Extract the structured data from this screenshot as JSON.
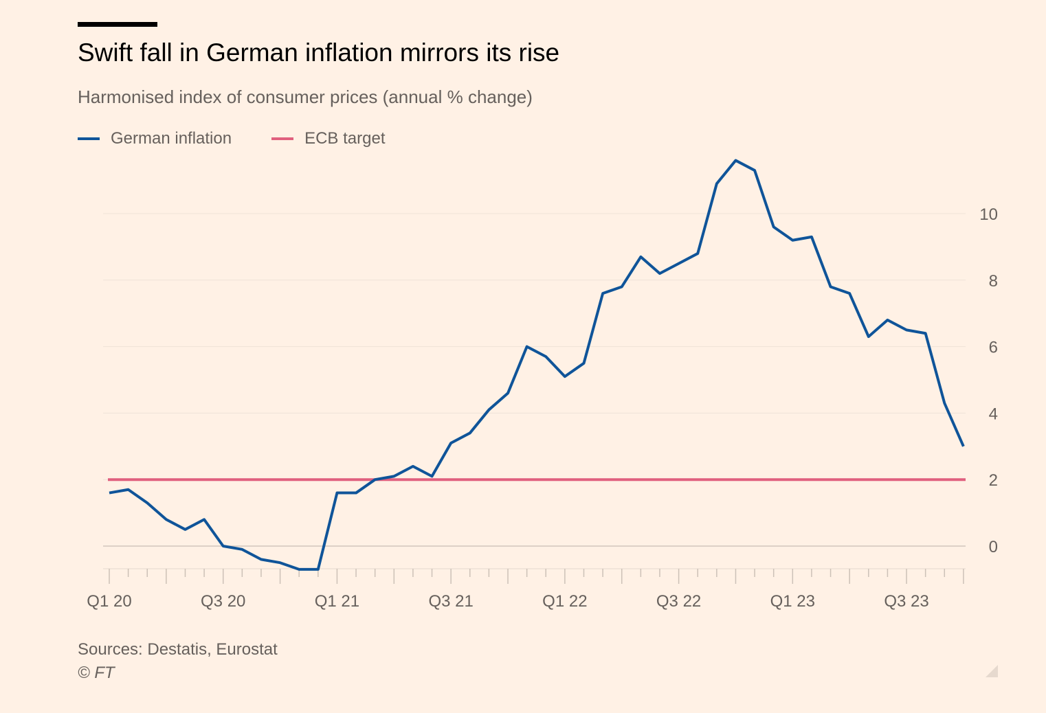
{
  "chart_data": {
    "type": "line",
    "title": "Swift fall in German inflation mirrors its rise",
    "subtitle": "Harmonised index of consumer prices (annual % change)",
    "xlabel": "",
    "ylabel": "",
    "ylim": [
      -0.7,
      11.6
    ],
    "yticks": [
      "0",
      "2",
      "4",
      "6",
      "8",
      "10"
    ],
    "ytick_values": [
      0,
      2,
      4,
      6,
      8,
      10
    ],
    "xtick_labels": [
      "Q1 20",
      "Q3 20",
      "Q1 21",
      "Q3 21",
      "Q1 22",
      "Q3 22",
      "Q1 23",
      "Q3 23"
    ],
    "x_start": "Jan 2020",
    "x_end": "Oct 2023",
    "grid": true,
    "legend_position": "top-left",
    "series": [
      {
        "name": "German inflation",
        "color": "#0f5499",
        "values": [
          1.6,
          1.7,
          1.3,
          0.8,
          0.5,
          0.8,
          0.0,
          -0.1,
          -0.4,
          -0.5,
          -0.7,
          -0.7,
          1.6,
          1.6,
          2.0,
          2.1,
          2.4,
          2.1,
          3.1,
          3.4,
          4.1,
          4.6,
          6.0,
          5.7,
          5.1,
          5.5,
          7.6,
          7.8,
          8.7,
          8.2,
          8.5,
          8.8,
          10.9,
          11.6,
          11.3,
          9.6,
          9.2,
          9.3,
          7.8,
          7.6,
          6.3,
          6.8,
          6.5,
          6.4,
          4.3,
          3.0
        ]
      },
      {
        "name": "ECB target",
        "color": "#e0607e",
        "values": [
          2
        ]
      }
    ]
  },
  "footer": {
    "source": "Sources: Destatis, Eurostat",
    "copyright": "© FT"
  }
}
